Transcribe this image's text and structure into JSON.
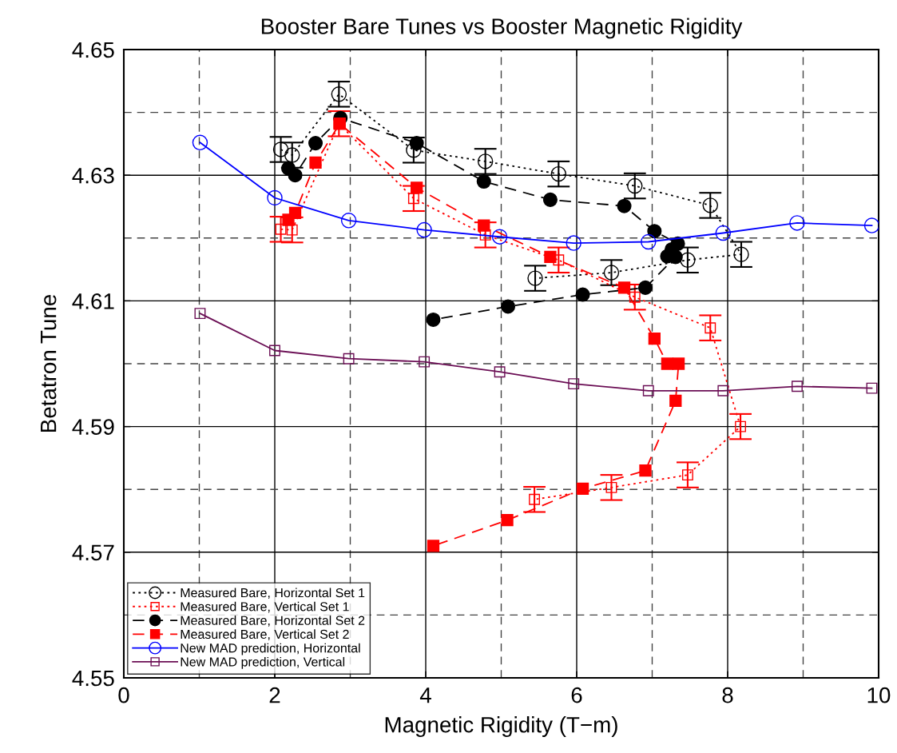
{
  "chart_data": {
    "type": "line",
    "title": "Booster Bare Tunes vs Booster Magnetic Rigidity",
    "xlabel": "Magnetic Rigidity (T−m)",
    "ylabel": "Betatron Tune",
    "xlim": [
      0,
      10
    ],
    "xticks": [
      0,
      2,
      4,
      6,
      8,
      10
    ],
    "ylim": [
      4.55,
      4.65
    ],
    "yticks": [
      4.55,
      4.57,
      4.59,
      4.61,
      4.63,
      4.65
    ],
    "grid": true,
    "legend": "bottom left",
    "series": [
      {
        "name": "Measured Bare, Horizontal Set 1",
        "color": "#000000",
        "marker": "circle",
        "line_style": "dotted",
        "x": [
          2.08,
          2.23,
          2.85,
          3.84,
          4.79,
          5.76,
          6.77,
          7.77,
          8.18,
          7.47,
          6.46,
          5.45
        ],
        "values": [
          4.6341,
          4.6332,
          4.6429,
          4.634,
          4.6322,
          4.6302,
          4.6283,
          4.6252,
          4.6174,
          4.6165,
          4.6145,
          4.6136
        ],
        "errors": [
          0.002,
          0.002,
          0.002,
          0.002,
          0.002,
          0.002,
          0.002,
          0.002,
          0.002,
          0.002,
          0.002,
          0.002
        ]
      },
      {
        "name": "Measured Bare, Vertical Set 1",
        "color": "#ff0000",
        "marker": "square",
        "line_style": "dotted",
        "x": [
          2.08,
          2.23,
          2.85,
          3.84,
          4.79,
          5.76,
          6.77,
          7.77,
          8.17,
          7.47,
          6.46,
          5.44
        ],
        "values": [
          4.6214,
          4.6213,
          4.6382,
          4.6263,
          4.6205,
          4.6165,
          4.6106,
          4.6057,
          4.59,
          4.5823,
          4.5803,
          4.5784
        ],
        "errors": [
          0.002,
          0.002,
          0.002,
          0.002,
          0.002,
          0.002,
          0.002,
          0.002,
          0.002,
          0.002,
          0.002,
          0.002
        ]
      },
      {
        "name": "Measured Bare, Horizontal Set 2",
        "color": "#000000",
        "marker": "circle",
        "line_style": "dashed",
        "x": [
          2.18,
          2.27,
          2.54,
          2.87,
          3.88,
          4.77,
          5.65,
          6.63,
          7.03,
          7.34,
          7.26,
          7.2,
          7.31,
          6.91,
          6.08,
          5.09,
          4.1
        ],
        "values": [
          4.6311,
          4.63,
          4.6351,
          4.6391,
          4.6351,
          4.629,
          4.6261,
          4.6251,
          4.6211,
          4.6191,
          4.6182,
          4.6171,
          4.617,
          4.6121,
          4.611,
          4.6091,
          4.607
        ]
      },
      {
        "name": "Measured Bare, Vertical Set 2",
        "color": "#ff0000",
        "marker": "square",
        "line_style": "dashed",
        "x": [
          2.18,
          2.27,
          2.54,
          2.86,
          3.88,
          4.77,
          5.65,
          6.63,
          7.03,
          7.2,
          7.35,
          7.31,
          6.91,
          6.08,
          5.08,
          4.1
        ],
        "values": [
          4.6229,
          4.624,
          4.632,
          4.6382,
          4.628,
          4.622,
          4.617,
          4.6121,
          4.604,
          4.6,
          4.6,
          4.5941,
          4.583,
          4.5801,
          4.5751,
          4.571
        ]
      },
      {
        "name": "New MAD prediction, Horizontal",
        "color": "#0000ff",
        "marker": "circle",
        "line_style": "solid",
        "x": [
          1.01,
          2.0,
          2.98,
          3.98,
          4.98,
          5.96,
          6.95,
          7.94,
          8.92,
          9.91
        ],
        "values": [
          4.6352,
          4.6264,
          4.6228,
          4.6213,
          4.6202,
          4.6192,
          4.6194,
          4.6208,
          4.6224,
          4.622
        ]
      },
      {
        "name": "New MAD prediction, Vertical",
        "color": "#6b0f55",
        "marker": "square",
        "line_style": "solid",
        "x": [
          1.01,
          2.0,
          2.98,
          3.98,
          4.98,
          5.96,
          6.95,
          7.94,
          8.92,
          9.91
        ],
        "values": [
          4.608,
          4.6021,
          4.6008,
          4.6003,
          4.5987,
          4.5968,
          4.5957,
          4.5957,
          4.5964,
          4.5961
        ]
      }
    ]
  }
}
